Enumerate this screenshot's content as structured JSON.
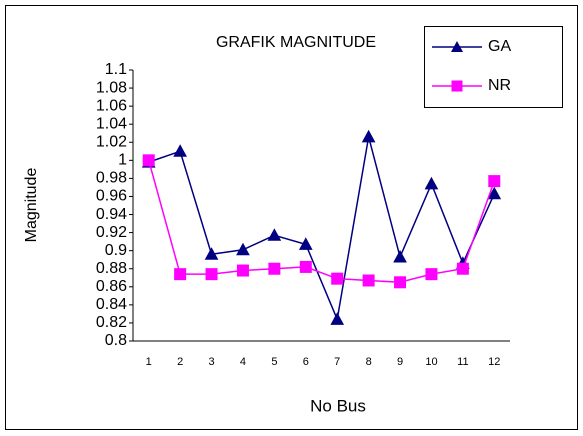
{
  "chart_data": {
    "type": "line",
    "title": "GRAFIK MAGNITUDE",
    "x_label": "No Bus",
    "y_label": "Magnitude",
    "categories": [
      "1",
      "2",
      "3",
      "4",
      "5",
      "6",
      "7",
      "8",
      "9",
      "10",
      "11",
      "12"
    ],
    "series": [
      {
        "name": "GA",
        "color": "#000080",
        "marker": "triangle",
        "values": [
          0.998,
          1.01,
          0.896,
          0.901,
          0.917,
          0.907,
          0.824,
          1.026,
          0.893,
          0.974,
          0.886,
          0.963
        ]
      },
      {
        "name": "NR",
        "color": "#ff00ff",
        "marker": "square",
        "values": [
          1.0,
          0.874,
          0.874,
          0.878,
          0.88,
          0.882,
          0.869,
          0.867,
          0.865,
          0.874,
          0.88,
          0.977
        ]
      }
    ],
    "ylim": [
      0.8,
      1.1
    ],
    "yticks": [
      0.8,
      0.82,
      0.84,
      0.86,
      0.88,
      0.9,
      0.92,
      0.94,
      0.96,
      0.98,
      1,
      1.02,
      1.04,
      1.06,
      1.08,
      1.1
    ],
    "legend": "top-right",
    "grid": false
  }
}
